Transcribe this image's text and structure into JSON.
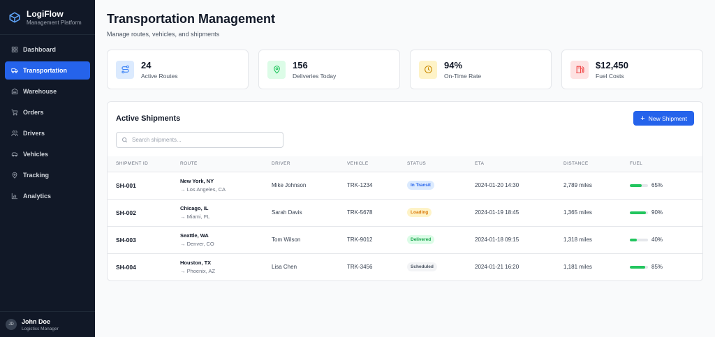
{
  "app": {
    "name": "LogiFlow",
    "tagline": "Management Platform"
  },
  "sidebar": {
    "items": [
      {
        "label": "Dashboard",
        "icon": "dashboard-icon"
      },
      {
        "label": "Transportation",
        "icon": "truck-icon",
        "active": true
      },
      {
        "label": "Warehouse",
        "icon": "warehouse-icon"
      },
      {
        "label": "Orders",
        "icon": "cart-icon"
      },
      {
        "label": "Drivers",
        "icon": "users-icon"
      },
      {
        "label": "Vehicles",
        "icon": "car-icon"
      },
      {
        "label": "Tracking",
        "icon": "map-pin-icon"
      },
      {
        "label": "Analytics",
        "icon": "chart-icon"
      }
    ]
  },
  "user": {
    "initials": "JD",
    "name": "John Doe",
    "role": "Logistics Manager"
  },
  "header": {
    "title": "Transportation Management",
    "subtitle": "Manage routes, vehicles, and shipments"
  },
  "stats": [
    {
      "value": "24",
      "label": "Active Routes",
      "color": "#3b82f6",
      "bg": "#dbeafe"
    },
    {
      "value": "156",
      "label": "Deliveries Today",
      "color": "#22c55e",
      "bg": "#dcfce7"
    },
    {
      "value": "94%",
      "label": "On-Time Rate",
      "color": "#ca8a04",
      "bg": "#fef3c7"
    },
    {
      "value": "$12,450",
      "label": "Fuel Costs",
      "color": "#ef4444",
      "bg": "#fee2e2"
    }
  ],
  "shipments": {
    "title": "Active Shipments",
    "new_button": "New Shipment",
    "search_placeholder": "Search shipments...",
    "columns": [
      "SHIPMENT ID",
      "ROUTE",
      "DRIVER",
      "VEHICLE",
      "STATUS",
      "ETA",
      "DISTANCE",
      "FUEL"
    ],
    "rows": [
      {
        "id": "SH-001",
        "from": "New York, NY",
        "to": "→ Los Angeles, CA",
        "driver": "Mike Johnson",
        "vehicle": "TRK-1234",
        "status": "In Transit",
        "eta": "2024-01-20 14:30",
        "distance": "2,789 miles",
        "fuel": 65,
        "fuel_label": "65%"
      },
      {
        "id": "SH-002",
        "from": "Chicago, IL",
        "to": "→ Miami, FL",
        "driver": "Sarah Davis",
        "vehicle": "TRK-5678",
        "status": "Loading",
        "eta": "2024-01-19 18:45",
        "distance": "1,365 miles",
        "fuel": 90,
        "fuel_label": "90%"
      },
      {
        "id": "SH-003",
        "from": "Seattle, WA",
        "to": "→ Denver, CO",
        "driver": "Tom Wilson",
        "vehicle": "TRK-9012",
        "status": "Delivered",
        "eta": "2024-01-18 09:15",
        "distance": "1,318 miles",
        "fuel": 40,
        "fuel_label": "40%"
      },
      {
        "id": "SH-004",
        "from": "Houston, TX",
        "to": "→ Phoenix, AZ",
        "driver": "Lisa Chen",
        "vehicle": "TRK-3456",
        "status": "Scheduled",
        "eta": "2024-01-21 16:20",
        "distance": "1,181 miles",
        "fuel": 85,
        "fuel_label": "85%"
      }
    ]
  },
  "status_colors": {
    "In Transit": [
      "#dbeafe",
      "#2563eb"
    ],
    "Loading": [
      "#fef3c7",
      "#d97706"
    ],
    "Delivered": [
      "#dcfce7",
      "#16a34a"
    ],
    "Scheduled": [
      "#f3f4f6",
      "#4b5563"
    ]
  }
}
